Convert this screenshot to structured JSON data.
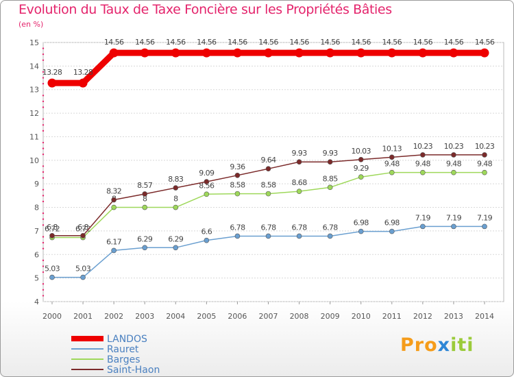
{
  "chart_data": {
    "type": "line",
    "title": "Evolution du Taux de Taxe Foncière sur les Propriétés Bâties",
    "subtitle": "(en %)",
    "x": [
      "2000",
      "2001",
      "2002",
      "2003",
      "2004",
      "2005",
      "2006",
      "2007",
      "2008",
      "2009",
      "2010",
      "2011",
      "2012",
      "2013",
      "2014"
    ],
    "ylim": [
      4,
      15
    ],
    "yticks": [
      "4",
      "5",
      "6",
      "7",
      "8",
      "9",
      "10",
      "11",
      "12",
      "13",
      "14",
      "15"
    ],
    "series": [
      {
        "name": "LANDOS",
        "color": "#ee0000",
        "values": [
          13.28,
          13.28,
          14.56,
          14.56,
          14.56,
          14.56,
          14.56,
          14.56,
          14.56,
          14.56,
          14.56,
          14.56,
          14.56,
          14.56,
          14.56
        ],
        "labels": [
          "13.28",
          "13.28",
          "14.56",
          "14.56",
          "14.56",
          "14.56",
          "14.56",
          "14.56",
          "14.56",
          "14.56",
          "14.56",
          "14.56",
          "14.56",
          "14.56",
          "14.56"
        ]
      },
      {
        "name": "Rauret",
        "color": "#6a9fd0",
        "values": [
          5.03,
          5.03,
          6.17,
          6.29,
          6.29,
          6.6,
          6.78,
          6.78,
          6.78,
          6.78,
          6.98,
          6.98,
          7.19,
          7.19,
          7.19
        ],
        "labels": [
          "5.03",
          "5.03",
          "6.17",
          "6.29",
          "6.29",
          "6.6",
          "6.78",
          "6.78",
          "6.78",
          "6.78",
          "6.98",
          "6.98",
          "7.19",
          "7.19",
          "7.19"
        ]
      },
      {
        "name": "Barges",
        "color": "#9ed85a",
        "values": [
          6.72,
          6.72,
          8,
          8,
          8,
          8.56,
          8.58,
          8.58,
          8.68,
          8.85,
          9.29,
          9.48,
          9.48,
          9.48,
          9.48
        ],
        "labels": [
          "6.72",
          "6.72",
          "8",
          "8",
          "8",
          "8.56",
          "8.58",
          "8.58",
          "8.68",
          "8.85",
          "9.29",
          "9.48",
          "9.48",
          "9.48",
          "9.48"
        ]
      },
      {
        "name": "Saint-Haon",
        "color": "#7b2a2a",
        "values": [
          6.8,
          6.8,
          8.32,
          8.57,
          8.83,
          9.09,
          9.36,
          9.64,
          9.93,
          9.93,
          10.03,
          10.13,
          10.23,
          10.23,
          10.23
        ],
        "labels": [
          "6.8",
          "6.8",
          "8.32",
          "8.57",
          "8.83",
          "9.09",
          "9.36",
          "9.64",
          "9.93",
          "9.93",
          "10.03",
          "10.13",
          "10.23",
          "10.23",
          "10.23"
        ]
      }
    ]
  },
  "brand": {
    "part1": "Pro",
    "part2": "x",
    "part3": "iti"
  }
}
